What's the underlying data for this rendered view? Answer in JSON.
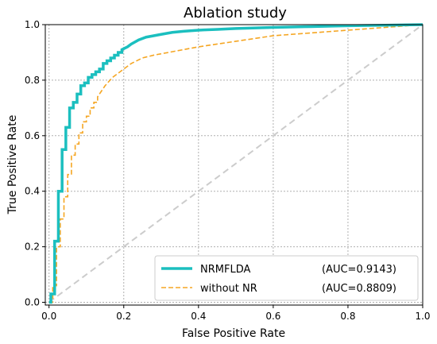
{
  "chart_data": {
    "type": "line",
    "title": "Ablation study",
    "xlabel": "False Positive Rate",
    "ylabel": "True Positive Rate",
    "xlim": [
      0,
      1
    ],
    "ylim": [
      0,
      1
    ],
    "xticks": [
      "0.0",
      "0.2",
      "0.4",
      "0.6",
      "0.8",
      "1.0"
    ],
    "yticks": [
      "0.0",
      "0.2",
      "0.4",
      "0.6",
      "0.8",
      "1.0"
    ],
    "grid": true,
    "legend_position": "bottom-right",
    "diagonal": {
      "x": [
        0,
        1
      ],
      "y": [
        0,
        1
      ],
      "color": "#cccccc",
      "style": "dashed"
    },
    "series": [
      {
        "name": "NRMFLDA",
        "auc_label": "(AUC=0.9143)",
        "color": "#1bbfbf",
        "style": "solid",
        "x": [
          0,
          0.005,
          0.005,
          0.015,
          0.015,
          0.025,
          0.025,
          0.035,
          0.035,
          0.045,
          0.045,
          0.055,
          0.055,
          0.065,
          0.065,
          0.075,
          0.075,
          0.085,
          0.085,
          0.095,
          0.095,
          0.105,
          0.105,
          0.115,
          0.115,
          0.125,
          0.125,
          0.135,
          0.135,
          0.145,
          0.145,
          0.155,
          0.155,
          0.165,
          0.165,
          0.175,
          0.175,
          0.185,
          0.185,
          0.195,
          0.195,
          0.21,
          0.22,
          0.24,
          0.26,
          0.28,
          0.3,
          0.33,
          0.36,
          0.4,
          0.45,
          0.5,
          0.6,
          0.7,
          0.8,
          0.9,
          1.0
        ],
        "y": [
          0,
          0,
          0.03,
          0.03,
          0.22,
          0.22,
          0.4,
          0.4,
          0.55,
          0.55,
          0.63,
          0.63,
          0.7,
          0.7,
          0.72,
          0.72,
          0.75,
          0.75,
          0.78,
          0.78,
          0.79,
          0.79,
          0.81,
          0.81,
          0.82,
          0.82,
          0.83,
          0.83,
          0.84,
          0.84,
          0.86,
          0.86,
          0.87,
          0.87,
          0.88,
          0.88,
          0.89,
          0.89,
          0.9,
          0.9,
          0.91,
          0.92,
          0.93,
          0.945,
          0.955,
          0.96,
          0.965,
          0.972,
          0.976,
          0.98,
          0.983,
          0.986,
          0.99,
          0.993,
          0.996,
          0.998,
          1.0
        ]
      },
      {
        "name": "without NR",
        "auc_label": "(AUC=0.8809)",
        "color": "#f5a623",
        "style": "dashed",
        "x": [
          0,
          0.01,
          0.01,
          0.02,
          0.02,
          0.03,
          0.03,
          0.04,
          0.04,
          0.05,
          0.05,
          0.06,
          0.06,
          0.07,
          0.07,
          0.08,
          0.08,
          0.09,
          0.09,
          0.1,
          0.1,
          0.11,
          0.11,
          0.12,
          0.12,
          0.13,
          0.13,
          0.14,
          0.15,
          0.17,
          0.2,
          0.22,
          0.25,
          0.28,
          0.32,
          0.36,
          0.4,
          0.45,
          0.5,
          0.55,
          0.6,
          0.65,
          0.7,
          0.75,
          0.8,
          0.85,
          0.9,
          0.95,
          1.0
        ],
        "y": [
          0,
          0,
          0.06,
          0.06,
          0.2,
          0.2,
          0.3,
          0.3,
          0.38,
          0.38,
          0.46,
          0.46,
          0.53,
          0.53,
          0.57,
          0.57,
          0.61,
          0.61,
          0.65,
          0.65,
          0.67,
          0.67,
          0.7,
          0.7,
          0.72,
          0.72,
          0.74,
          0.76,
          0.78,
          0.81,
          0.84,
          0.86,
          0.88,
          0.89,
          0.9,
          0.91,
          0.92,
          0.93,
          0.94,
          0.95,
          0.96,
          0.965,
          0.97,
          0.975,
          0.98,
          0.985,
          0.99,
          0.995,
          1.0
        ]
      }
    ]
  }
}
